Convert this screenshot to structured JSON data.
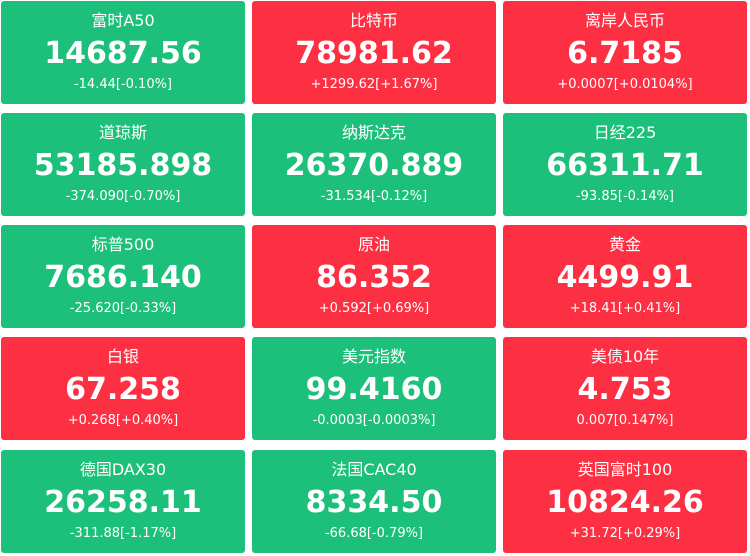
{
  "tiles": [
    {
      "name": "富时A50",
      "price": "14687.56",
      "change": "-14.44[-0.10%]",
      "color": "#1dc07b"
    },
    {
      "name": "比特币",
      "price": "78981.62",
      "change": "+1299.62[+1.67%]",
      "color": "#fd2f42"
    },
    {
      "name": "离岸人民币",
      "price": "6.7185",
      "change": "+0.0007[+0.0104%]",
      "color": "#fd2f42"
    },
    {
      "name": "道琼斯",
      "price": "53185.898",
      "change": "-374.090[-0.70%]",
      "color": "#1dc07b"
    },
    {
      "name": "纳斯达克",
      "price": "26370.889",
      "change": "-31.534[-0.12%]",
      "color": "#1dc07b"
    },
    {
      "name": "日经225",
      "price": "66311.71",
      "change": "-93.85[-0.14%]",
      "color": "#1dc07b"
    },
    {
      "name": "标普500",
      "price": "7686.140",
      "change": "-25.620[-0.33%]",
      "color": "#1dc07b"
    },
    {
      "name": "原油",
      "price": "86.352",
      "change": "+0.592[+0.69%]",
      "color": "#fd2f42"
    },
    {
      "name": "黄金",
      "price": "4499.91",
      "change": "+18.41[+0.41%]",
      "color": "#fd2f42"
    },
    {
      "name": "白银",
      "price": "67.258",
      "change": "+0.268[+0.40%]",
      "color": "#fd2f42"
    },
    {
      "name": "美元指数",
      "price": "99.4160",
      "change": "-0.0003[-0.0003%]",
      "color": "#1dc07b"
    },
    {
      "name": "美债10年",
      "price": "4.753",
      "change": "0.007[0.147%]",
      "color": "#fd2f42"
    },
    {
      "name": "德国DAX30",
      "price": "26258.11",
      "change": "-311.88[-1.17%]",
      "color": "#1dc07b"
    },
    {
      "name": "法国CAC40",
      "price": "8334.50",
      "change": "-66.68[-0.79%]",
      "color": "#1dc07b"
    },
    {
      "name": "英国富时100",
      "price": "10824.26",
      "change": "+31.72[+0.29%]",
      "color": "#fd2f42"
    }
  ]
}
